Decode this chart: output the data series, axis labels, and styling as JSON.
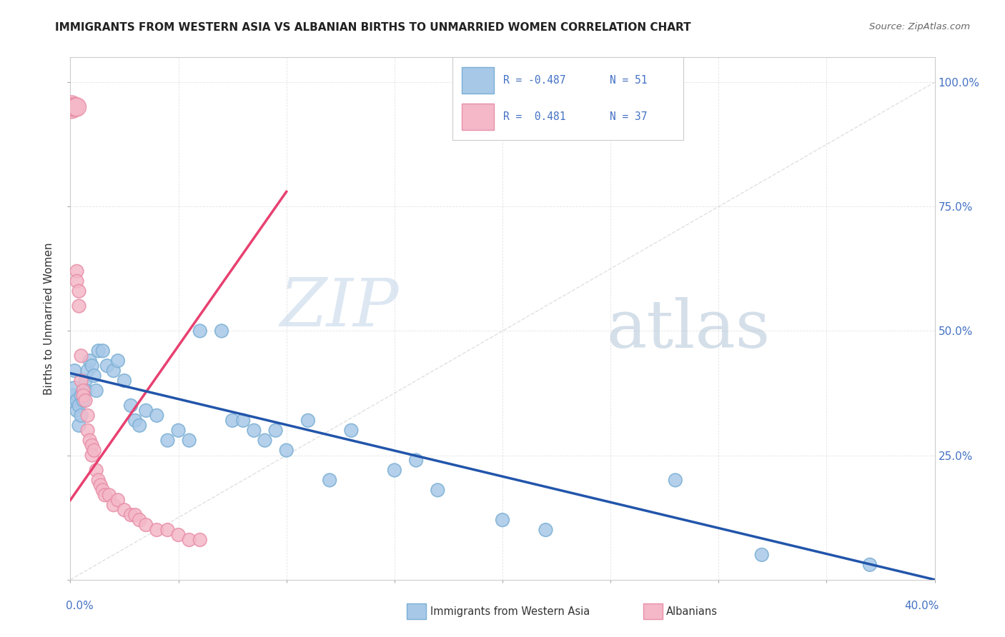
{
  "title": "IMMIGRANTS FROM WESTERN ASIA VS ALBANIAN BIRTHS TO UNMARRIED WOMEN CORRELATION CHART",
  "source": "Source: ZipAtlas.com",
  "ylabel": "Births to Unmarried Women",
  "watermark_zip": "ZIP",
  "watermark_atlas": "atlas",
  "blue_color": "#a8c8e8",
  "blue_edge_color": "#7aafd4",
  "pink_color": "#f4b8c8",
  "pink_edge_color": "#e890a8",
  "trendline_blue_color": "#2255aa",
  "trendline_pink_color": "#e84070",
  "blue_scatter": [
    [
      0.001,
      0.365
    ],
    [
      0.002,
      0.38
    ],
    [
      0.002,
      0.42
    ],
    [
      0.003,
      0.36
    ],
    [
      0.003,
      0.34
    ],
    [
      0.004,
      0.31
    ],
    [
      0.004,
      0.35
    ],
    [
      0.005,
      0.33
    ],
    [
      0.005,
      0.37
    ],
    [
      0.006,
      0.38
    ],
    [
      0.006,
      0.36
    ],
    [
      0.007,
      0.4
    ],
    [
      0.007,
      0.38
    ],
    [
      0.008,
      0.42
    ],
    [
      0.009,
      0.44
    ],
    [
      0.01,
      0.43
    ],
    [
      0.011,
      0.41
    ],
    [
      0.012,
      0.38
    ],
    [
      0.013,
      0.46
    ],
    [
      0.015,
      0.46
    ],
    [
      0.017,
      0.43
    ],
    [
      0.02,
      0.42
    ],
    [
      0.022,
      0.44
    ],
    [
      0.025,
      0.4
    ],
    [
      0.028,
      0.35
    ],
    [
      0.03,
      0.32
    ],
    [
      0.032,
      0.31
    ],
    [
      0.035,
      0.34
    ],
    [
      0.04,
      0.33
    ],
    [
      0.045,
      0.28
    ],
    [
      0.05,
      0.3
    ],
    [
      0.055,
      0.28
    ],
    [
      0.06,
      0.5
    ],
    [
      0.07,
      0.5
    ],
    [
      0.075,
      0.32
    ],
    [
      0.08,
      0.32
    ],
    [
      0.085,
      0.3
    ],
    [
      0.09,
      0.28
    ],
    [
      0.095,
      0.3
    ],
    [
      0.1,
      0.26
    ],
    [
      0.11,
      0.32
    ],
    [
      0.12,
      0.2
    ],
    [
      0.13,
      0.3
    ],
    [
      0.15,
      0.22
    ],
    [
      0.16,
      0.24
    ],
    [
      0.17,
      0.18
    ],
    [
      0.2,
      0.12
    ],
    [
      0.22,
      0.1
    ],
    [
      0.28,
      0.2
    ],
    [
      0.32,
      0.05
    ],
    [
      0.37,
      0.03
    ]
  ],
  "pink_scatter": [
    [
      0.0005,
      0.95
    ],
    [
      0.001,
      0.95
    ],
    [
      0.002,
      0.95
    ],
    [
      0.003,
      0.95
    ],
    [
      0.003,
      0.62
    ],
    [
      0.003,
      0.6
    ],
    [
      0.004,
      0.55
    ],
    [
      0.004,
      0.58
    ],
    [
      0.005,
      0.45
    ],
    [
      0.005,
      0.4
    ],
    [
      0.006,
      0.38
    ],
    [
      0.006,
      0.37
    ],
    [
      0.007,
      0.36
    ],
    [
      0.008,
      0.33
    ],
    [
      0.008,
      0.3
    ],
    [
      0.009,
      0.28
    ],
    [
      0.01,
      0.27
    ],
    [
      0.01,
      0.25
    ],
    [
      0.011,
      0.26
    ],
    [
      0.012,
      0.22
    ],
    [
      0.013,
      0.2
    ],
    [
      0.014,
      0.19
    ],
    [
      0.015,
      0.18
    ],
    [
      0.016,
      0.17
    ],
    [
      0.018,
      0.17
    ],
    [
      0.02,
      0.15
    ],
    [
      0.022,
      0.16
    ],
    [
      0.025,
      0.14
    ],
    [
      0.028,
      0.13
    ],
    [
      0.03,
      0.13
    ],
    [
      0.032,
      0.12
    ],
    [
      0.035,
      0.11
    ],
    [
      0.04,
      0.1
    ],
    [
      0.045,
      0.1
    ],
    [
      0.05,
      0.09
    ],
    [
      0.055,
      0.08
    ],
    [
      0.06,
      0.08
    ]
  ],
  "blue_trendline": [
    [
      0.0,
      0.415
    ],
    [
      0.4,
      0.0
    ]
  ],
  "pink_trendline": [
    [
      0.0,
      0.16
    ],
    [
      0.1,
      0.78
    ]
  ],
  "diag_line": [
    [
      0.0,
      0.0
    ],
    [
      0.4,
      1.0
    ]
  ],
  "xlim": [
    0.0,
    0.4
  ],
  "ylim": [
    0.0,
    1.05
  ],
  "bg_color": "#ffffff",
  "grid_color": "#dddddd",
  "marker_size": 180,
  "marker_size_large": 350
}
